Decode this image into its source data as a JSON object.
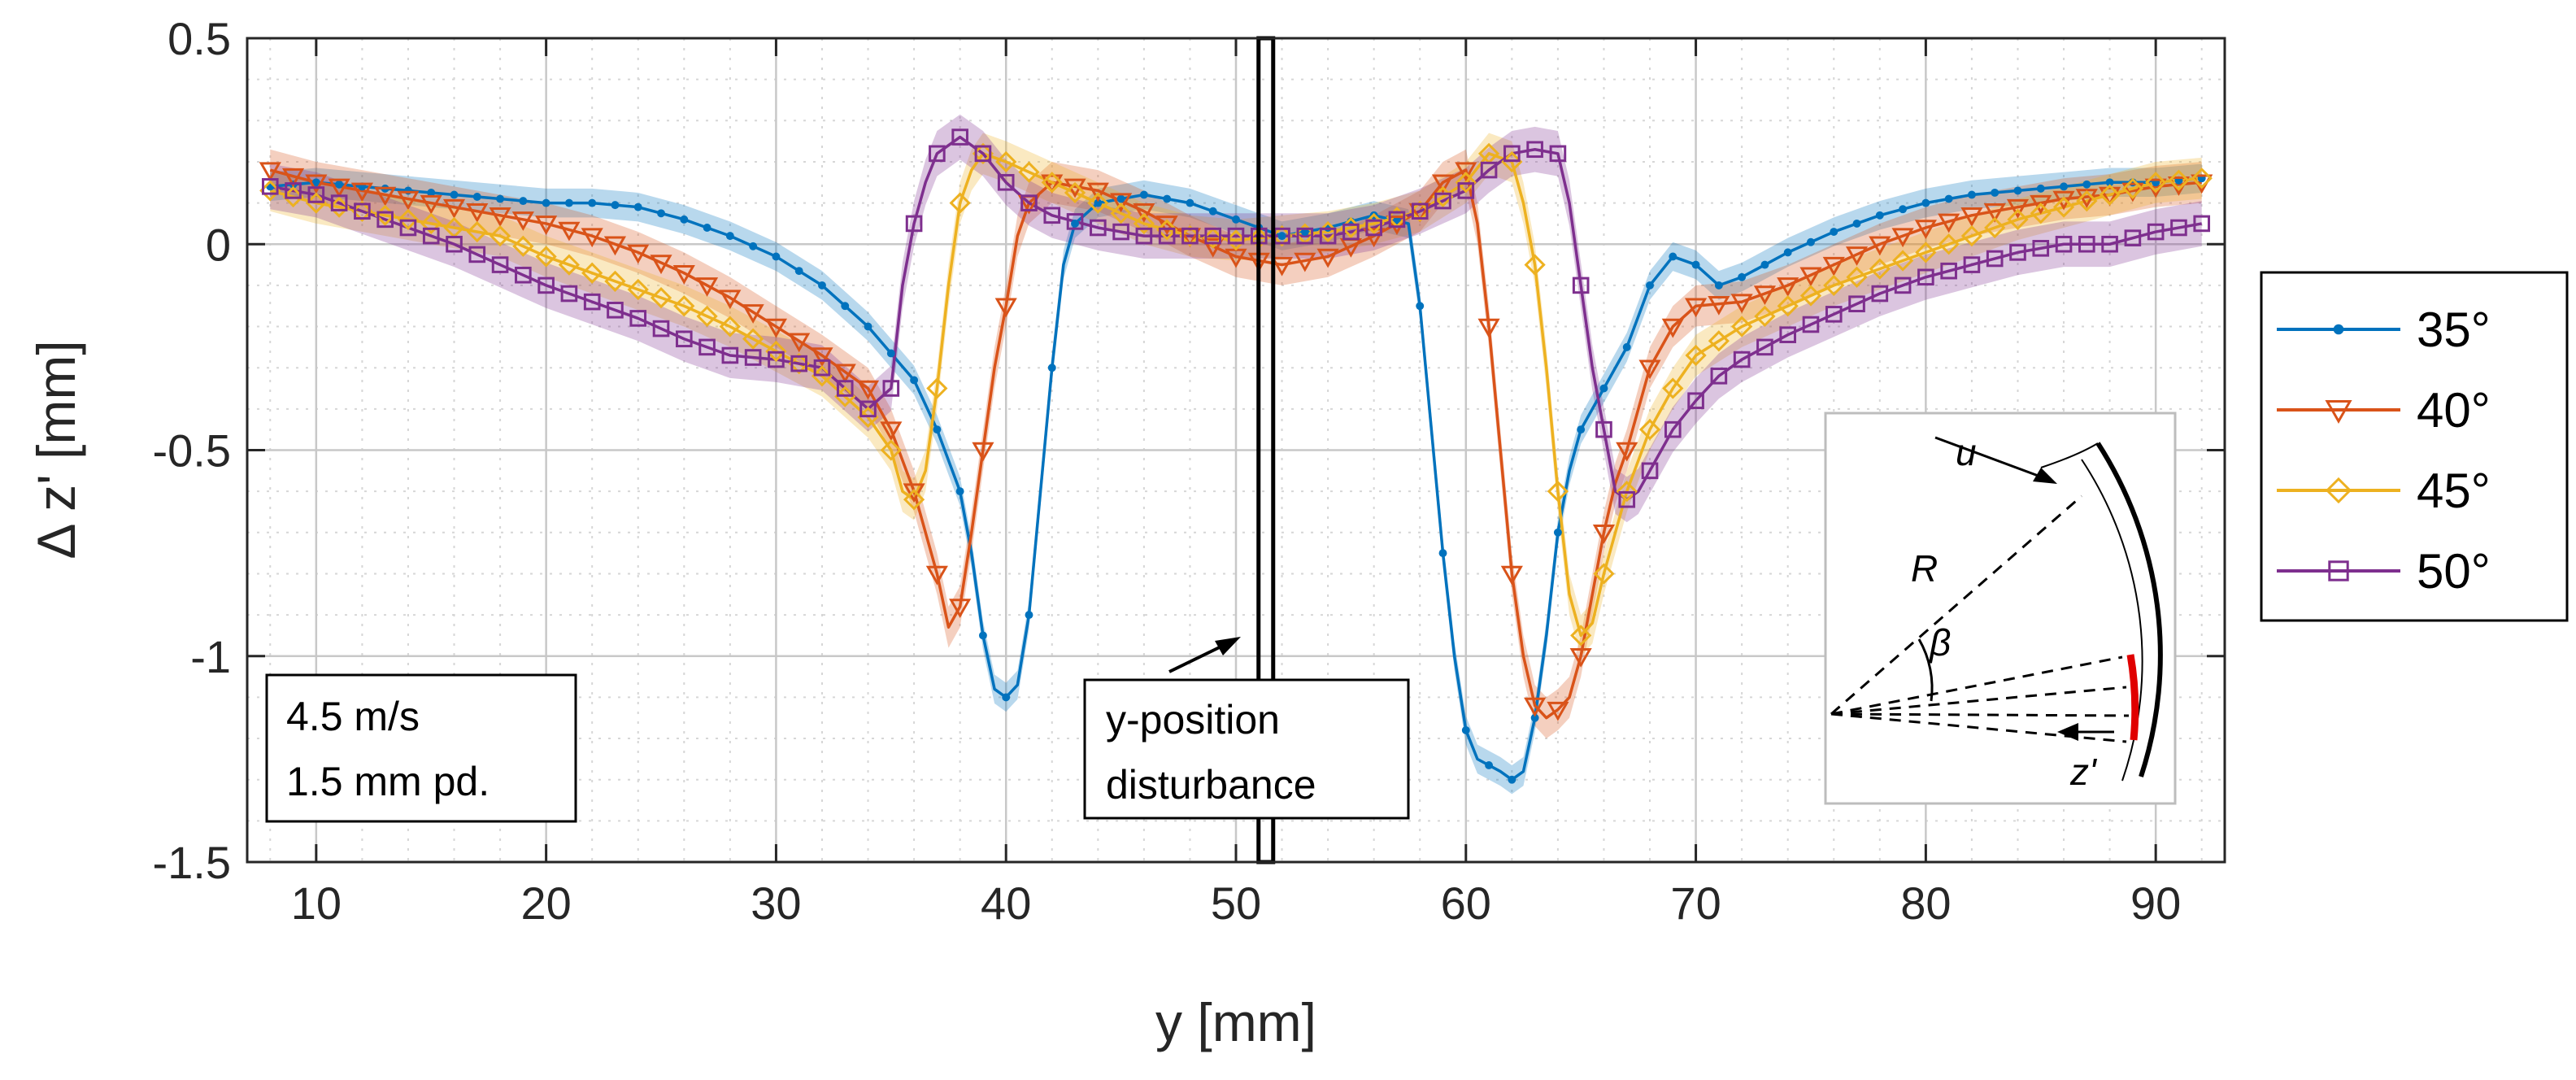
{
  "chart_data": {
    "type": "line",
    "title": "",
    "xlabel": "y [mm]",
    "ylabel": "Δ z' [mm]",
    "xlim": [
      7,
      93
    ],
    "ylim": [
      -1.5,
      0.5
    ],
    "xticks": [
      "10",
      "20",
      "30",
      "40",
      "50",
      "60",
      "70",
      "80",
      "90"
    ],
    "yticks": [
      "0.5",
      "0",
      "-0.5",
      "-1",
      "-1.5"
    ],
    "grid": true,
    "minor_grid": true,
    "legend_position": "outside-right",
    "annotations": {
      "speed": "4.5 m/s",
      "pd": "1.5 mm pd.",
      "disturbance_line1": "y-position",
      "disturbance_line2": "disturbance",
      "disturbance_y": 51.3
    },
    "inset_labels": {
      "u": "u",
      "R": "R",
      "beta": "β",
      "z": "z'"
    },
    "series": [
      {
        "name": "35°",
        "color": "#0072BD",
        "marker": "dot",
        "band": 0.035,
        "points": [
          [
            8,
            0.14
          ],
          [
            10,
            0.15
          ],
          [
            12,
            0.14
          ],
          [
            14,
            0.13
          ],
          [
            16,
            0.12
          ],
          [
            18,
            0.11
          ],
          [
            20,
            0.1
          ],
          [
            22,
            0.1
          ],
          [
            24,
            0.09
          ],
          [
            26,
            0.06
          ],
          [
            28,
            0.02
          ],
          [
            30,
            -0.03
          ],
          [
            32,
            -0.1
          ],
          [
            34,
            -0.2
          ],
          [
            36,
            -0.33
          ],
          [
            37,
            -0.45
          ],
          [
            38,
            -0.6
          ],
          [
            38.5,
            -0.75
          ],
          [
            39,
            -0.95
          ],
          [
            39.5,
            -1.08
          ],
          [
            40,
            -1.1
          ],
          [
            40.5,
            -1.07
          ],
          [
            41,
            -0.9
          ],
          [
            41.5,
            -0.6
          ],
          [
            42,
            -0.3
          ],
          [
            42.5,
            -0.05
          ],
          [
            43,
            0.05
          ],
          [
            44,
            0.1
          ],
          [
            46,
            0.12
          ],
          [
            48,
            0.1
          ],
          [
            50,
            0.06
          ],
          [
            52,
            0.02
          ],
          [
            54,
            0.04
          ],
          [
            56,
            0.07
          ],
          [
            57.5,
            0.05
          ],
          [
            58,
            -0.15
          ],
          [
            58.5,
            -0.45
          ],
          [
            59,
            -0.75
          ],
          [
            59.5,
            -1.0
          ],
          [
            60,
            -1.18
          ],
          [
            60.5,
            -1.25
          ],
          [
            61.5,
            -1.28
          ],
          [
            62,
            -1.3
          ],
          [
            62.5,
            -1.28
          ],
          [
            63,
            -1.15
          ],
          [
            63.5,
            -0.95
          ],
          [
            64,
            -0.7
          ],
          [
            64.5,
            -0.55
          ],
          [
            65,
            -0.45
          ],
          [
            66,
            -0.35
          ],
          [
            67,
            -0.25
          ],
          [
            68,
            -0.1
          ],
          [
            69,
            -0.03
          ],
          [
            70,
            -0.05
          ],
          [
            71,
            -0.1
          ],
          [
            72,
            -0.08
          ],
          [
            74,
            -0.02
          ],
          [
            76,
            0.03
          ],
          [
            78,
            0.07
          ],
          [
            80,
            0.1
          ],
          [
            82,
            0.12
          ],
          [
            84,
            0.13
          ],
          [
            86,
            0.14
          ],
          [
            88,
            0.15
          ],
          [
            90,
            0.15
          ],
          [
            92,
            0.16
          ]
        ]
      },
      {
        "name": "40°",
        "color": "#D95319",
        "marker": "tri",
        "band": 0.05,
        "points": [
          [
            8,
            0.18
          ],
          [
            10,
            0.15
          ],
          [
            12,
            0.13
          ],
          [
            14,
            0.11
          ],
          [
            16,
            0.09
          ],
          [
            18,
            0.07
          ],
          [
            20,
            0.05
          ],
          [
            22,
            0.02
          ],
          [
            24,
            -0.02
          ],
          [
            26,
            -0.07
          ],
          [
            28,
            -0.13
          ],
          [
            30,
            -0.2
          ],
          [
            32,
            -0.27
          ],
          [
            34,
            -0.35
          ],
          [
            35,
            -0.45
          ],
          [
            36,
            -0.6
          ],
          [
            37,
            -0.8
          ],
          [
            37.5,
            -0.93
          ],
          [
            38,
            -0.88
          ],
          [
            38.5,
            -0.7
          ],
          [
            39,
            -0.5
          ],
          [
            39.5,
            -0.3
          ],
          [
            40,
            -0.15
          ],
          [
            40.5,
            0.02
          ],
          [
            41,
            0.1
          ],
          [
            42,
            0.15
          ],
          [
            44,
            0.13
          ],
          [
            46,
            0.08
          ],
          [
            48,
            0.02
          ],
          [
            50,
            -0.03
          ],
          [
            52,
            -0.05
          ],
          [
            54,
            -0.03
          ],
          [
            56,
            0.02
          ],
          [
            58,
            0.08
          ],
          [
            59,
            0.15
          ],
          [
            60,
            0.18
          ],
          [
            60.5,
            0.05
          ],
          [
            61,
            -0.2
          ],
          [
            61.5,
            -0.5
          ],
          [
            62,
            -0.8
          ],
          [
            62.5,
            -1.0
          ],
          [
            63,
            -1.12
          ],
          [
            63.5,
            -1.15
          ],
          [
            64,
            -1.13
          ],
          [
            64.5,
            -1.1
          ],
          [
            65,
            -1.0
          ],
          [
            65.5,
            -0.85
          ],
          [
            66,
            -0.7
          ],
          [
            66.5,
            -0.58
          ],
          [
            67,
            -0.5
          ],
          [
            68,
            -0.3
          ],
          [
            69,
            -0.2
          ],
          [
            70,
            -0.15
          ],
          [
            72,
            -0.14
          ],
          [
            74,
            -0.1
          ],
          [
            76,
            -0.05
          ],
          [
            78,
            0.0
          ],
          [
            80,
            0.04
          ],
          [
            82,
            0.07
          ],
          [
            84,
            0.09
          ],
          [
            86,
            0.11
          ],
          [
            88,
            0.12
          ],
          [
            90,
            0.14
          ],
          [
            92,
            0.15
          ]
        ]
      },
      {
        "name": "45°",
        "color": "#EDB120",
        "marker": "diamond",
        "band": 0.05,
        "points": [
          [
            8,
            0.13
          ],
          [
            10,
            0.1
          ],
          [
            12,
            0.08
          ],
          [
            14,
            0.06
          ],
          [
            16,
            0.04
          ],
          [
            18,
            0.02
          ],
          [
            20,
            -0.03
          ],
          [
            22,
            -0.07
          ],
          [
            24,
            -0.11
          ],
          [
            26,
            -0.15
          ],
          [
            28,
            -0.2
          ],
          [
            30,
            -0.26
          ],
          [
            32,
            -0.32
          ],
          [
            34,
            -0.42
          ],
          [
            35,
            -0.5
          ],
          [
            35.5,
            -0.6
          ],
          [
            36,
            -0.62
          ],
          [
            36.5,
            -0.55
          ],
          [
            37,
            -0.35
          ],
          [
            37.5,
            -0.1
          ],
          [
            38,
            0.1
          ],
          [
            38.5,
            0.18
          ],
          [
            39,
            0.22
          ],
          [
            40,
            0.2
          ],
          [
            42,
            0.15
          ],
          [
            44,
            0.1
          ],
          [
            46,
            0.05
          ],
          [
            48,
            0.02
          ],
          [
            50,
            0.01
          ],
          [
            52,
            0.02
          ],
          [
            54,
            0.03
          ],
          [
            56,
            0.05
          ],
          [
            58,
            0.08
          ],
          [
            60,
            0.15
          ],
          [
            61,
            0.22
          ],
          [
            62,
            0.2
          ],
          [
            62.5,
            0.1
          ],
          [
            63,
            -0.05
          ],
          [
            63.5,
            -0.3
          ],
          [
            64,
            -0.6
          ],
          [
            64.5,
            -0.85
          ],
          [
            65,
            -0.95
          ],
          [
            65.5,
            -0.92
          ],
          [
            66,
            -0.8
          ],
          [
            67,
            -0.6
          ],
          [
            68,
            -0.45
          ],
          [
            69,
            -0.35
          ],
          [
            70,
            -0.27
          ],
          [
            72,
            -0.2
          ],
          [
            74,
            -0.15
          ],
          [
            76,
            -0.1
          ],
          [
            78,
            -0.06
          ],
          [
            80,
            -0.02
          ],
          [
            82,
            0.02
          ],
          [
            84,
            0.06
          ],
          [
            86,
            0.09
          ],
          [
            88,
            0.12
          ],
          [
            90,
            0.15
          ],
          [
            92,
            0.16
          ]
        ]
      },
      {
        "name": "50°",
        "color": "#7E2F8E",
        "marker": "square",
        "band": 0.055,
        "points": [
          [
            8,
            0.14
          ],
          [
            10,
            0.12
          ],
          [
            12,
            0.08
          ],
          [
            14,
            0.04
          ],
          [
            16,
            0.0
          ],
          [
            18,
            -0.05
          ],
          [
            20,
            -0.1
          ],
          [
            22,
            -0.14
          ],
          [
            24,
            -0.18
          ],
          [
            26,
            -0.23
          ],
          [
            28,
            -0.27
          ],
          [
            30,
            -0.28
          ],
          [
            32,
            -0.3
          ],
          [
            33,
            -0.35
          ],
          [
            34,
            -0.4
          ],
          [
            35,
            -0.35
          ],
          [
            35.5,
            -0.1
          ],
          [
            36,
            0.05
          ],
          [
            36.5,
            0.15
          ],
          [
            37,
            0.22
          ],
          [
            38,
            0.26
          ],
          [
            39,
            0.22
          ],
          [
            40,
            0.15
          ],
          [
            41,
            0.1
          ],
          [
            42,
            0.07
          ],
          [
            44,
            0.04
          ],
          [
            46,
            0.02
          ],
          [
            48,
            0.02
          ],
          [
            50,
            0.02
          ],
          [
            52,
            0.02
          ],
          [
            54,
            0.02
          ],
          [
            56,
            0.04
          ],
          [
            58,
            0.08
          ],
          [
            60,
            0.13
          ],
          [
            61,
            0.18
          ],
          [
            62,
            0.22
          ],
          [
            63,
            0.23
          ],
          [
            64,
            0.22
          ],
          [
            64.5,
            0.1
          ],
          [
            65,
            -0.1
          ],
          [
            65.5,
            -0.3
          ],
          [
            66,
            -0.45
          ],
          [
            66.5,
            -0.6
          ],
          [
            67,
            -0.62
          ],
          [
            67.5,
            -0.6
          ],
          [
            68,
            -0.55
          ],
          [
            69,
            -0.45
          ],
          [
            70,
            -0.38
          ],
          [
            71,
            -0.32
          ],
          [
            72,
            -0.28
          ],
          [
            74,
            -0.22
          ],
          [
            76,
            -0.17
          ],
          [
            78,
            -0.12
          ],
          [
            80,
            -0.08
          ],
          [
            82,
            -0.05
          ],
          [
            84,
            -0.02
          ],
          [
            86,
            0.0
          ],
          [
            88,
            0.0
          ],
          [
            90,
            0.03
          ],
          [
            92,
            0.05
          ]
        ]
      }
    ]
  }
}
